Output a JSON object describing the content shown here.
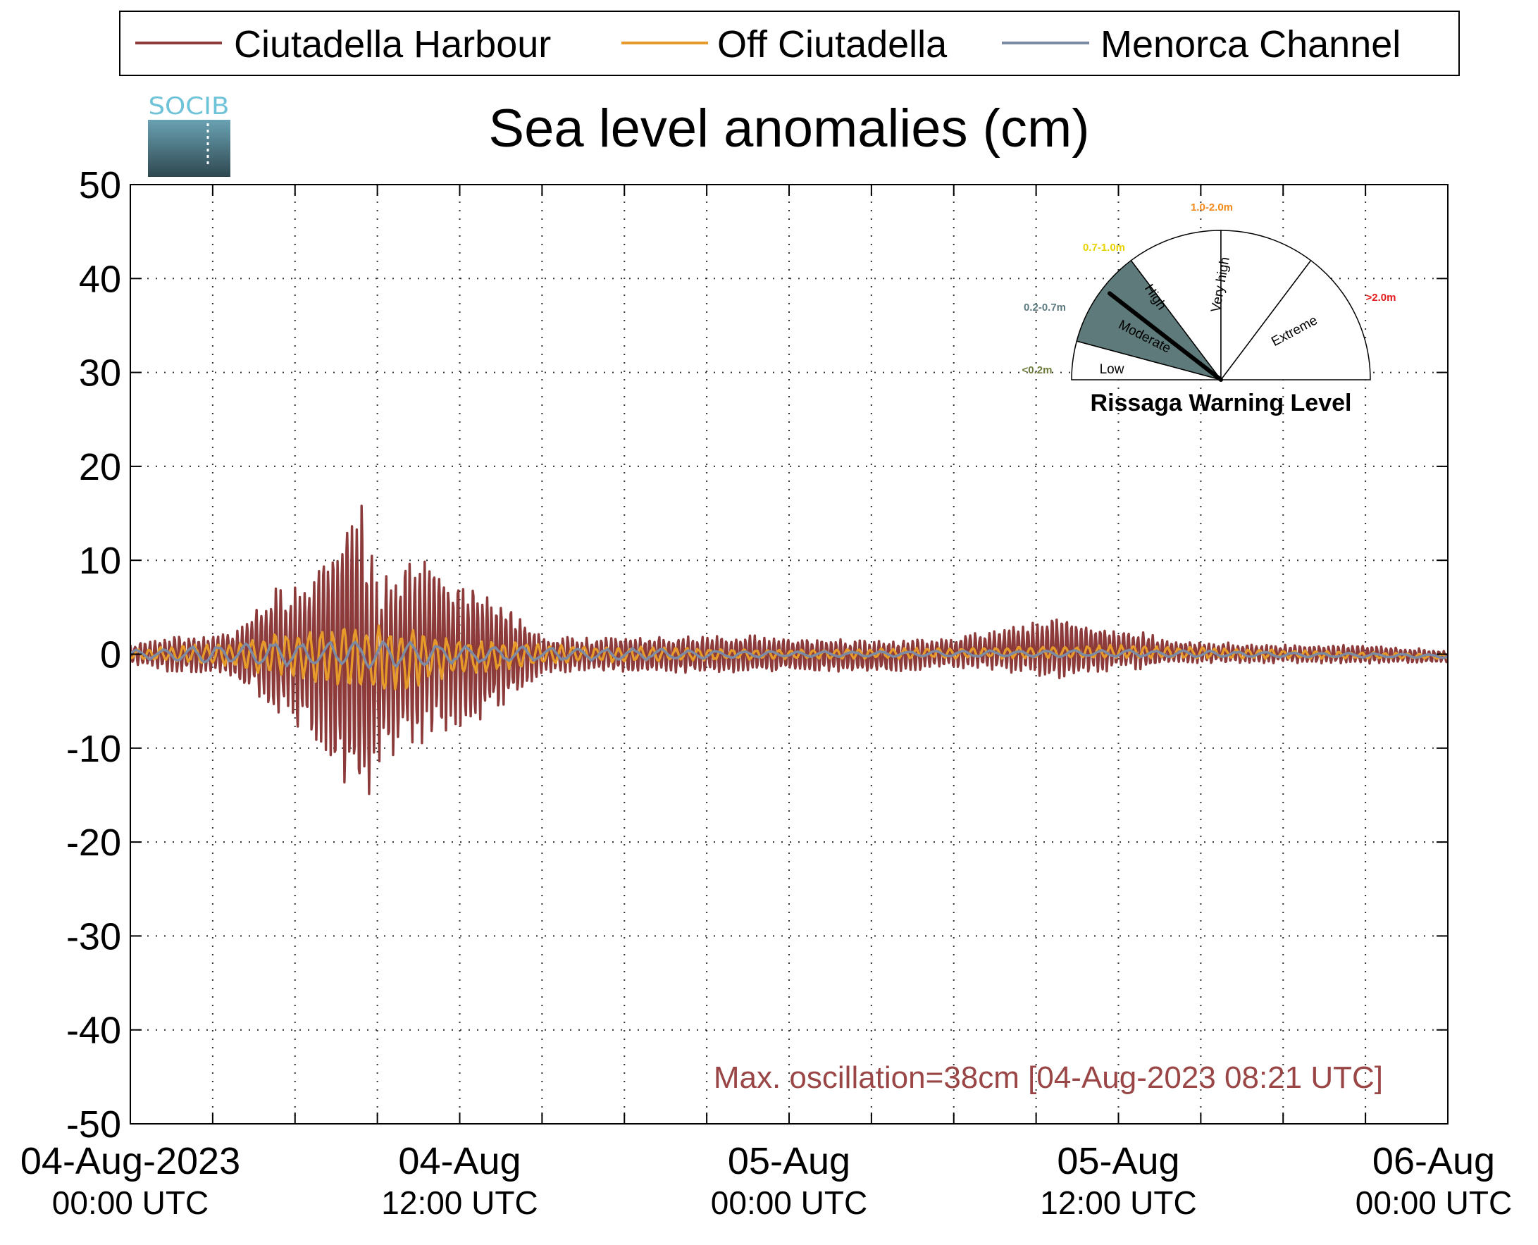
{
  "chart_data": {
    "type": "line",
    "title": "Sea level anomalies (cm)",
    "xlabel": "",
    "ylabel": "",
    "ylim": [
      -50,
      50
    ],
    "yticks": [
      50,
      40,
      30,
      20,
      10,
      0,
      -10,
      -20,
      -30,
      -40,
      -50
    ],
    "xlim": [
      "2023-08-04T00:00Z",
      "2023-08-06T00:00Z"
    ],
    "x_major_ticks": [
      {
        "time": "2023-08-04T00:00Z",
        "line1": "04-Aug-2023",
        "line2": "00:00 UTC"
      },
      {
        "time": "2023-08-04T12:00Z",
        "line1": "04-Aug",
        "line2": "12:00 UTC"
      },
      {
        "time": "2023-08-05T00:00Z",
        "line1": "05-Aug",
        "line2": "00:00 UTC"
      },
      {
        "time": "2023-08-05T12:00Z",
        "line1": "05-Aug",
        "line2": "12:00 UTC"
      },
      {
        "time": "2023-08-06T00:00Z",
        "line1": "06-Aug",
        "line2": "00:00 UTC"
      }
    ],
    "x_minor_tick_hours": [
      3,
      6,
      9,
      15,
      18,
      21,
      27,
      30,
      33,
      39,
      42,
      45
    ],
    "grid": true,
    "legend_position": "top",
    "series": [
      {
        "name": "Ciutadella Harbour",
        "color": "#8c3a3a",
        "envelope": [
          {
            "time": "2023-08-04T00:00Z",
            "min": -1,
            "max": 1
          },
          {
            "time": "2023-08-04T01:30Z",
            "min": -2,
            "max": 2
          },
          {
            "time": "2023-08-04T03:00Z",
            "min": -2,
            "max": 2
          },
          {
            "time": "2023-08-04T04:00Z",
            "min": -3,
            "max": 3
          },
          {
            "time": "2023-08-04T05:00Z",
            "min": -6,
            "max": 7
          },
          {
            "time": "2023-08-04T06:00Z",
            "min": -8,
            "max": 8
          },
          {
            "time": "2023-08-04T07:00Z",
            "min": -10,
            "max": 10
          },
          {
            "time": "2023-08-04T08:00Z",
            "min": -16,
            "max": 17
          },
          {
            "time": "2023-08-04T08:21Z",
            "min": -20,
            "max": 18.5
          },
          {
            "time": "2023-08-04T09:00Z",
            "min": -13,
            "max": 9
          },
          {
            "time": "2023-08-04T10:00Z",
            "min": -10,
            "max": 10
          },
          {
            "time": "2023-08-04T11:00Z",
            "min": -10,
            "max": 12
          },
          {
            "time": "2023-08-04T12:00Z",
            "min": -8,
            "max": 8
          },
          {
            "time": "2023-08-04T13:00Z",
            "min": -7,
            "max": 7
          },
          {
            "time": "2023-08-04T14:00Z",
            "min": -5,
            "max": 5
          },
          {
            "time": "2023-08-04T15:00Z",
            "min": -2,
            "max": 2
          },
          {
            "time": "2023-08-04T18:00Z",
            "min": -2,
            "max": 2
          },
          {
            "time": "2023-08-04T21:00Z",
            "min": -2,
            "max": 2
          },
          {
            "time": "2023-08-05T00:00Z",
            "min": -2,
            "max": 2
          },
          {
            "time": "2023-08-05T03:00Z",
            "min": -2,
            "max": 1.5
          },
          {
            "time": "2023-08-05T06:00Z",
            "min": -1.5,
            "max": 2
          },
          {
            "time": "2023-08-05T08:00Z",
            "min": -2,
            "max": 3
          },
          {
            "time": "2023-08-05T09:30Z",
            "min": -3,
            "max": 4
          },
          {
            "time": "2023-08-05T11:00Z",
            "min": -2,
            "max": 3
          },
          {
            "time": "2023-08-05T12:00Z",
            "min": -2,
            "max": 3
          },
          {
            "time": "2023-08-05T14:00Z",
            "min": -1,
            "max": 1.5
          },
          {
            "time": "2023-08-05T18:00Z",
            "min": -1,
            "max": 1
          },
          {
            "time": "2023-08-05T21:00Z",
            "min": -1,
            "max": 1
          },
          {
            "time": "2023-08-06T00:00Z",
            "min": -1,
            "max": 0.5
          }
        ]
      },
      {
        "name": "Off Ciutadella",
        "color": "#e59a2a",
        "envelope": [
          {
            "time": "2023-08-04T00:00Z",
            "min": -0.5,
            "max": 0.5
          },
          {
            "time": "2023-08-04T04:00Z",
            "min": -1.5,
            "max": 1.5
          },
          {
            "time": "2023-08-04T06:00Z",
            "min": -3,
            "max": 3
          },
          {
            "time": "2023-08-04T08:00Z",
            "min": -4,
            "max": 3.5
          },
          {
            "time": "2023-08-04T09:00Z",
            "min": -5,
            "max": 3.5
          },
          {
            "time": "2023-08-04T11:00Z",
            "min": -3,
            "max": 2.5
          },
          {
            "time": "2023-08-04T13:00Z",
            "min": -2,
            "max": 1.5
          },
          {
            "time": "2023-08-04T16:00Z",
            "min": -1,
            "max": 1
          },
          {
            "time": "2023-08-05T00:00Z",
            "min": -0.5,
            "max": 0.5
          },
          {
            "time": "2023-08-05T12:00Z",
            "min": -0.5,
            "max": 1
          },
          {
            "time": "2023-08-06T00:00Z",
            "min": -0.5,
            "max": 0
          }
        ]
      },
      {
        "name": "Menorca Channel",
        "color": "#7d8aa3",
        "envelope": [
          {
            "time": "2023-08-04T00:00Z",
            "min": -0.5,
            "max": 0.5
          },
          {
            "time": "2023-08-04T06:00Z",
            "min": -1.5,
            "max": 1.5
          },
          {
            "time": "2023-08-04T09:00Z",
            "min": -1.5,
            "max": 1.5
          },
          {
            "time": "2023-08-04T12:00Z",
            "min": -1,
            "max": 1
          },
          {
            "time": "2023-08-05T00:00Z",
            "min": -0.3,
            "max": 0.3
          },
          {
            "time": "2023-08-05T12:00Z",
            "min": -0.3,
            "max": 0.5
          },
          {
            "time": "2023-08-06T00:00Z",
            "min": -0.4,
            "max": 0
          }
        ]
      }
    ],
    "annotation": {
      "text": "Max. oscillation=38cm [04-Aug-2023 08:21 UTC]",
      "color": "#9a4646"
    }
  },
  "logo": {
    "text": "SOCIB",
    "text_color": "#6fc3d8",
    "gradient_top": "#6aa2b3",
    "gradient_bottom": "#2f4850"
  },
  "gauge": {
    "title": "Rissaga Warning Level",
    "current_level": "Moderate",
    "needle_value_m": 0.5,
    "segments": [
      {
        "label": "Low",
        "range": "<0.2m",
        "range_color": "#6b7a3a",
        "fill": "#ffffff"
      },
      {
        "label": "Moderate",
        "range": "0.2-0.7m",
        "range_color": "#5d7a80",
        "fill": "#5e7a7a"
      },
      {
        "label": "High",
        "range": "0.7-1.0m",
        "range_color": "#e8d300",
        "fill": "#ffffff"
      },
      {
        "label": "Very high",
        "range": "1.0-2.0m",
        "range_color": "#f28a1c",
        "fill": "#ffffff"
      },
      {
        "label": "Extreme",
        "range": ">2.0m",
        "range_color": "#e51c1c",
        "fill": "#ffffff"
      }
    ]
  }
}
